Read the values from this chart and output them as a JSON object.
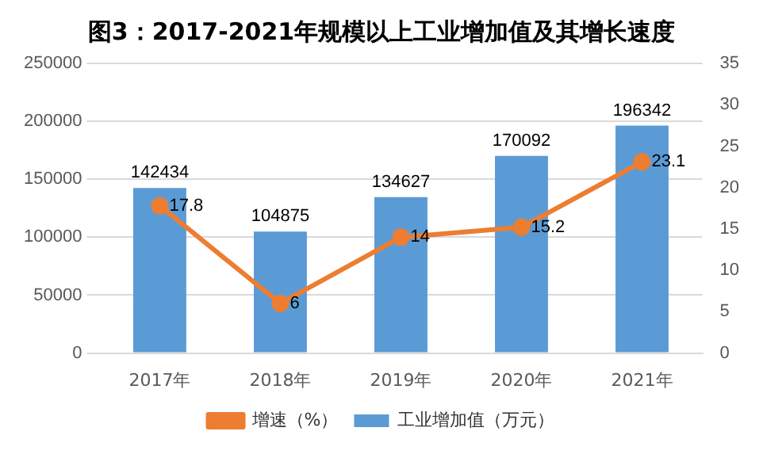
{
  "chart_data": {
    "type": "bar",
    "title": "图3：2017-2021年规模以上工业增加值及其增长速度",
    "categories": [
      "2017年",
      "2018年",
      "2019年",
      "2020年",
      "2021年"
    ],
    "series": [
      {
        "name": "工业增加值（万元）",
        "color": "#5b9bd5",
        "values": [
          142434,
          104875,
          134627,
          170092,
          196342
        ]
      },
      {
        "name": "增速（%）",
        "type": "line",
        "axis": "y2",
        "color": "#ed7d31",
        "values": [
          17.8,
          6,
          14,
          15.2,
          23.1
        ]
      }
    ],
    "ylim": [
      0,
      250000
    ],
    "yticks": [
      0,
      50000,
      100000,
      150000,
      200000,
      250000
    ],
    "y2lim": [
      0,
      35
    ],
    "y2ticks": [
      0,
      5,
      10,
      15,
      20,
      25,
      30,
      35
    ],
    "grid": "y",
    "legend": "bottom",
    "marker": "circle",
    "data_labels": true
  }
}
